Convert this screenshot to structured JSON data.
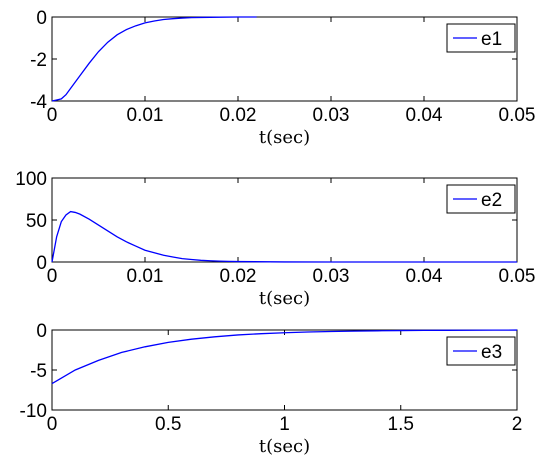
{
  "chart_data": [
    {
      "type": "line",
      "xlabel": "t(sec)",
      "ylabel": "",
      "xlim": [
        0,
        0.05
      ],
      "ylim": [
        -4,
        0
      ],
      "xticks": [
        0,
        0.01,
        0.02,
        0.03,
        0.04,
        0.05
      ],
      "xtick_labels": [
        "0",
        "0.01",
        "0.02",
        "0.03",
        "0.04",
        "0.05"
      ],
      "yticks": [
        -4,
        -2,
        0
      ],
      "ytick_labels": [
        "-4",
        "-2",
        "0"
      ],
      "grid": false,
      "legend_position": "top-right",
      "series": [
        {
          "name": "e1",
          "color": "#0000ff",
          "x": [
            0,
            0.0005,
            0.001,
            0.0015,
            0.002,
            0.003,
            0.004,
            0.005,
            0.006,
            0.007,
            0.008,
            0.009,
            0.01,
            0.011,
            0.012,
            0.013,
            0.014,
            0.015,
            0.016,
            0.018,
            0.02,
            0.022
          ],
          "y": [
            -4,
            -3.95,
            -3.9,
            -3.7,
            -3.4,
            -2.8,
            -2.2,
            -1.65,
            -1.2,
            -0.85,
            -0.6,
            -0.42,
            -0.28,
            -0.19,
            -0.12,
            -0.08,
            -0.05,
            -0.03,
            -0.02,
            -0.01,
            0,
            0
          ]
        }
      ]
    },
    {
      "type": "line",
      "xlabel": "t(sec)",
      "ylabel": "",
      "xlim": [
        0,
        0.05
      ],
      "ylim": [
        0,
        100
      ],
      "xticks": [
        0,
        0.01,
        0.02,
        0.03,
        0.04,
        0.05
      ],
      "xtick_labels": [
        "0",
        "0.01",
        "0.02",
        "0.03",
        "0.04",
        "0.05"
      ],
      "yticks": [
        0,
        50,
        100
      ],
      "ytick_labels": [
        "0",
        "50",
        "100"
      ],
      "grid": false,
      "legend_position": "top-right",
      "series": [
        {
          "name": "e2",
          "color": "#0000ff",
          "x": [
            0,
            0.0005,
            0.001,
            0.0015,
            0.002,
            0.0025,
            0.003,
            0.004,
            0.005,
            0.006,
            0.007,
            0.008,
            0.009,
            0.01,
            0.011,
            0.012,
            0.013,
            0.014,
            0.015,
            0.016,
            0.017,
            0.018,
            0.019,
            0.02,
            0.025,
            0.03,
            0.05
          ],
          "y": [
            0,
            30,
            48,
            56,
            60,
            59,
            57,
            51,
            44,
            37,
            30,
            24,
            19,
            14,
            11,
            8,
            6,
            4,
            3,
            2,
            1.5,
            1,
            0.7,
            0.5,
            0.1,
            0,
            0
          ]
        }
      ]
    },
    {
      "type": "line",
      "xlabel": "t(sec)",
      "ylabel": "",
      "xlim": [
        0,
        2
      ],
      "ylim": [
        -10,
        0
      ],
      "xticks": [
        0,
        0.5,
        1,
        1.5,
        2
      ],
      "xtick_labels": [
        "0",
        "0.5",
        "1",
        "1.5",
        "2"
      ],
      "yticks": [
        -10,
        -5,
        0
      ],
      "ytick_labels": [
        "-10",
        "-5",
        "0"
      ],
      "grid": false,
      "legend_position": "top-right",
      "series": [
        {
          "name": "e3",
          "color": "#0000ff",
          "x": [
            0,
            0.1,
            0.2,
            0.3,
            0.4,
            0.5,
            0.6,
            0.7,
            0.8,
            0.9,
            1.0,
            1.1,
            1.2,
            1.3,
            1.4,
            1.5,
            1.6,
            1.7,
            1.8,
            1.9,
            2.0
          ],
          "y": [
            -6.7,
            -5.0,
            -3.8,
            -2.8,
            -2.1,
            -1.55,
            -1.15,
            -0.85,
            -0.62,
            -0.46,
            -0.34,
            -0.25,
            -0.19,
            -0.14,
            -0.1,
            -0.07,
            -0.05,
            -0.04,
            -0.03,
            -0.02,
            -0.01
          ]
        }
      ]
    }
  ]
}
